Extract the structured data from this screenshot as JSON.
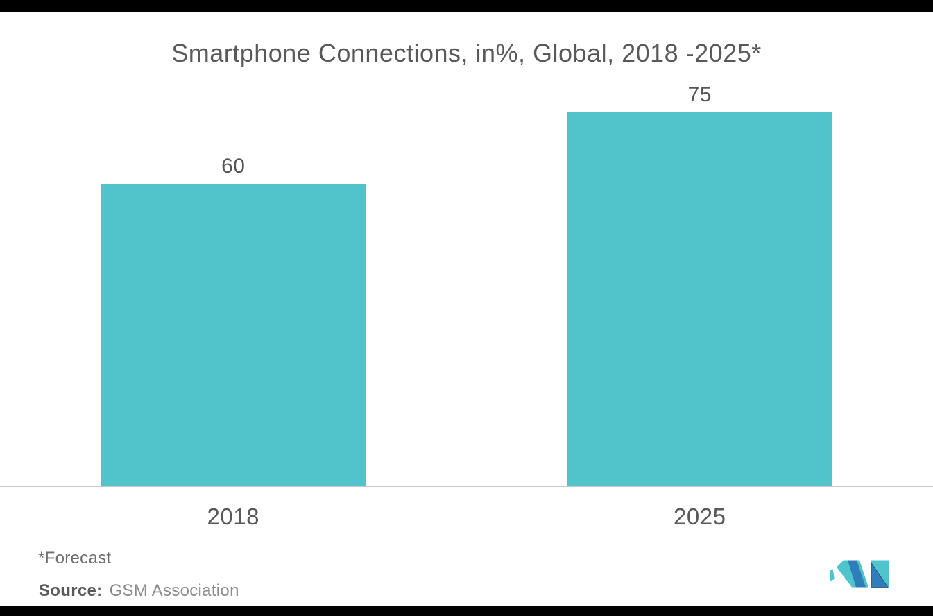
{
  "chart_data": {
    "type": "bar",
    "title": "Smartphone Connections, in%, Global, 2018 -2025*",
    "categories": [
      "2018",
      "2025"
    ],
    "values": [
      60,
      75
    ],
    "xlabel": "",
    "ylabel": "",
    "ylim": [
      0,
      80
    ],
    "grid": false,
    "legend": false,
    "value_labels_shown": true,
    "bar_color": "#51C3CB"
  },
  "footer": {
    "forecast_note": "*Forecast",
    "source_label": "Source:",
    "source_value": "GSM Association"
  },
  "colors": {
    "bar": "#51C3CB",
    "title_text": "#58595B",
    "value_text": "#545557",
    "axis_line": "#C8C9CA",
    "frame": "#000000",
    "footnote_text": "#6D6E70",
    "logo_blue": "#2E7EBB",
    "logo_teal": "#4EC5CC"
  }
}
